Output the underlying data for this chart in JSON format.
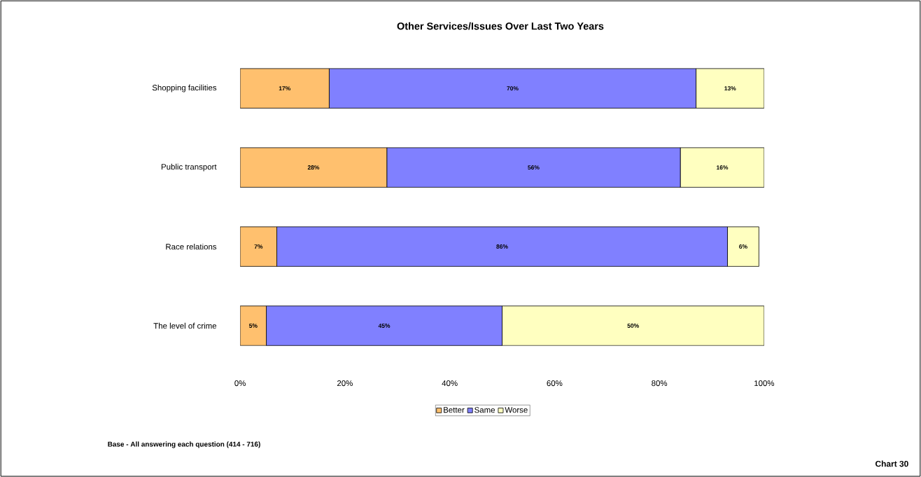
{
  "chart_data": {
    "type": "bar",
    "orientation": "horizontal",
    "stacked": true,
    "title": "Other Services/Issues Over Last Two Years",
    "categories": [
      "Shopping facilities",
      "Public transport",
      "Race relations",
      "The level of crime"
    ],
    "series": [
      {
        "name": "Better",
        "color": "#ffc06e",
        "values": [
          17,
          28,
          7,
          5
        ],
        "value_labels": [
          "17%",
          "28%",
          "7%",
          "5%"
        ]
      },
      {
        "name": "Same",
        "color": "#8080ff",
        "values": [
          70,
          56,
          86,
          45
        ],
        "value_labels": [
          "70%",
          "56%",
          "86%",
          "45%"
        ]
      },
      {
        "name": "Worse",
        "color": "#ffffc0",
        "values": [
          13,
          16,
          6,
          50
        ],
        "value_labels": [
          "13%",
          "16%",
          "6%",
          "50%"
        ]
      }
    ],
    "xlim": [
      0,
      100
    ],
    "xticks": [
      {
        "value": 0,
        "label": "0%"
      },
      {
        "value": 20,
        "label": "20%"
      },
      {
        "value": 40,
        "label": "40%"
      },
      {
        "value": 60,
        "label": "60%"
      },
      {
        "value": 80,
        "label": "80%"
      },
      {
        "value": 100,
        "label": "100%"
      }
    ],
    "legend": "bottom",
    "grid": false,
    "annotations": [
      "Base - All answering each question  (414 - 716)",
      "Chart 30"
    ]
  }
}
